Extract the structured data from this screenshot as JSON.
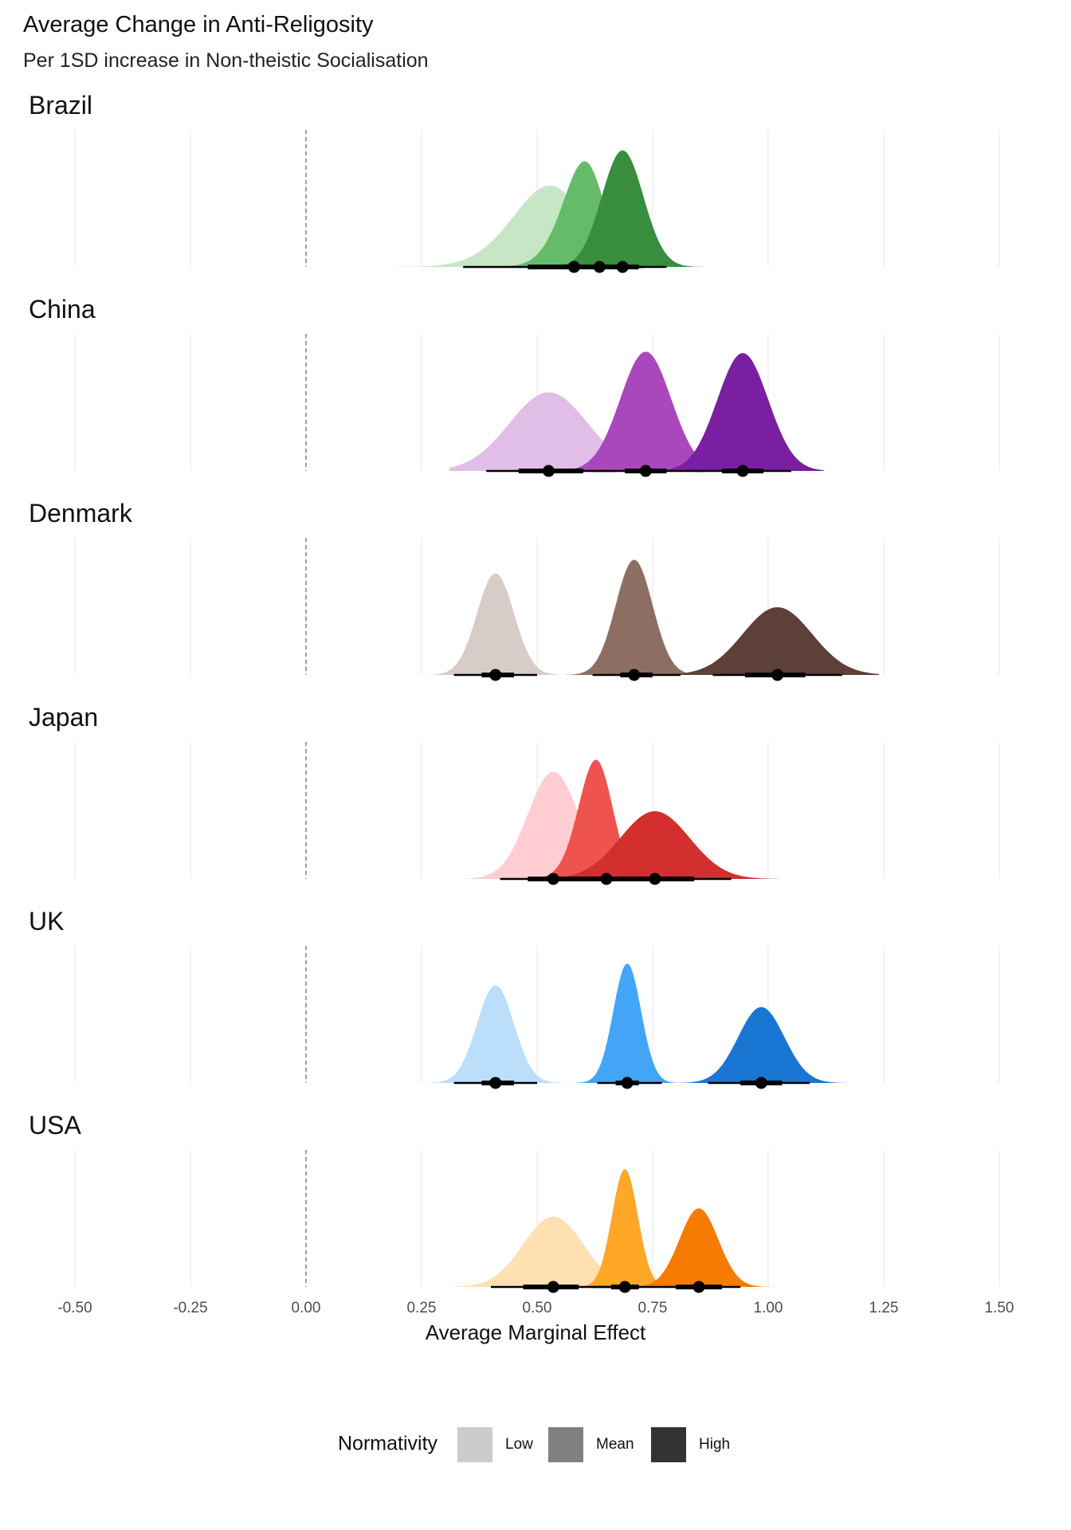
{
  "chart_data": {
    "type": "area",
    "subtype": "density-halfeye",
    "title": "Average Change in Anti-Religosity",
    "subtitle": "Per 1SD increase in Non-theistic Socialisation",
    "xlabel": "Average Marginal Effect",
    "ylabel": "",
    "xlim": [
      -0.5,
      1.5
    ],
    "x_ticks": [
      -0.5,
      -0.25,
      0.0,
      0.25,
      0.5,
      0.75,
      1.0,
      1.25,
      1.5
    ],
    "x_tick_labels": [
      "-0.50",
      "-0.25",
      "0.00",
      "0.25",
      "0.50",
      "0.75",
      "1.00",
      "1.25",
      "1.50"
    ],
    "reference_line": {
      "x": 0.0,
      "style": "dashed"
    },
    "grid": "vertical",
    "legend": {
      "title": "Normativity",
      "placement": "bottom",
      "entries": [
        {
          "label": "Low",
          "color": "#cccccc"
        },
        {
          "label": "Mean",
          "color": "#808080"
        },
        {
          "label": "High",
          "color": "#333333"
        }
      ]
    },
    "panels": [
      {
        "label": "Brazil",
        "series": [
          {
            "level": "Low",
            "color": "#c7e6c5",
            "mean": 0.58,
            "sd": 0.1,
            "skew": -1.2,
            "range": [
              0.12,
              0.9
            ],
            "peak": 0.6,
            "ci66": [
              0.48,
              0.67
            ],
            "ci95": [
              0.34,
              0.73
            ]
          },
          {
            "level": "Mean",
            "color": "#66bb6a",
            "mean": 0.635,
            "sd": 0.06,
            "skew": -1.4,
            "range": [
              0.35,
              0.85
            ],
            "peak": 0.78,
            "ci66": [
              0.59,
              0.68
            ],
            "ci95": [
              0.5,
              0.73
            ]
          },
          {
            "level": "High",
            "color": "#388e3c",
            "mean": 0.685,
            "sd": 0.045,
            "skew": 0.0,
            "range": [
              0.48,
              0.86
            ],
            "peak": 0.86,
            "ci66": [
              0.66,
              0.72
            ],
            "ci95": [
              0.6,
              0.78
            ]
          }
        ]
      },
      {
        "label": "China",
        "series": [
          {
            "level": "Low",
            "color": "#e1bee7",
            "mean": 0.525,
            "sd": 0.085,
            "skew": 0.0,
            "range": [
              0.31,
              0.8
            ],
            "peak": 0.58,
            "ci66": [
              0.46,
              0.6
            ],
            "ci95": [
              0.39,
              0.67
            ]
          },
          {
            "level": "Mean",
            "color": "#ab47bc",
            "mean": 0.735,
            "sd": 0.055,
            "skew": 0.0,
            "range": [
              0.58,
              0.96
            ],
            "peak": 0.88,
            "ci66": [
              0.69,
              0.78
            ],
            "ci95": [
              0.62,
              0.86
            ]
          },
          {
            "level": "High",
            "color": "#7b1fa2",
            "mean": 0.945,
            "sd": 0.055,
            "skew": 0.0,
            "range": [
              0.78,
              1.12
            ],
            "peak": 0.87,
            "ci66": [
              0.9,
              0.99
            ],
            "ci95": [
              0.84,
              1.05
            ]
          }
        ]
      },
      {
        "label": "Denmark",
        "series": [
          {
            "level": "Low",
            "color": "#d7ccc8",
            "mean": 0.41,
            "sd": 0.04,
            "skew": 0.0,
            "range": [
              0.26,
              0.55
            ],
            "peak": 0.75,
            "ci66": [
              0.38,
              0.45
            ],
            "ci95": [
              0.32,
              0.5
            ]
          },
          {
            "level": "Mean",
            "color": "#8d6e63",
            "mean": 0.71,
            "sd": 0.04,
            "skew": 0.0,
            "range": [
              0.56,
              0.84
            ],
            "peak": 0.85,
            "ci66": [
              0.68,
              0.75
            ],
            "ci95": [
              0.62,
              0.81
            ]
          },
          {
            "level": "High",
            "color": "#5d4037",
            "mean": 1.02,
            "sd": 0.075,
            "skew": 0.0,
            "range": [
              0.8,
              1.24
            ],
            "peak": 0.5,
            "ci66": [
              0.95,
              1.08
            ],
            "ci95": [
              0.88,
              1.16
            ]
          }
        ]
      },
      {
        "label": "Japan",
        "series": [
          {
            "level": "Low",
            "color": "#ffcdd2",
            "mean": 0.535,
            "sd": 0.055,
            "skew": 0.0,
            "range": [
              0.34,
              0.72
            ],
            "peak": 0.79,
            "ci66": [
              0.48,
              0.6
            ],
            "ci95": [
              0.42,
              0.67
            ]
          },
          {
            "level": "Mean",
            "color": "#ef5350",
            "mean": 0.65,
            "sd": 0.045,
            "skew": -1.0,
            "range": [
              0.5,
              0.84
            ],
            "peak": 0.88,
            "ci66": [
              0.59,
              0.7
            ],
            "ci95": [
              0.52,
              0.76
            ]
          },
          {
            "level": "High",
            "color": "#d32f2f",
            "mean": 0.755,
            "sd": 0.075,
            "skew": 0.0,
            "range": [
              0.48,
              1.02
            ],
            "peak": 0.5,
            "ci66": [
              0.67,
              0.84
            ],
            "ci95": [
              0.56,
              0.92
            ]
          }
        ]
      },
      {
        "label": "UK",
        "series": [
          {
            "level": "Low",
            "color": "#bbdefb",
            "mean": 0.41,
            "sd": 0.04,
            "skew": 0.0,
            "range": [
              0.26,
              0.56
            ],
            "peak": 0.72,
            "ci66": [
              0.38,
              0.45
            ],
            "ci95": [
              0.32,
              0.5
            ]
          },
          {
            "level": "Mean",
            "color": "#42a5f5",
            "mean": 0.695,
            "sd": 0.03,
            "skew": 0.0,
            "range": [
              0.58,
              0.8
            ],
            "peak": 0.88,
            "ci66": [
              0.67,
              0.72
            ],
            "ci95": [
              0.63,
              0.77
            ]
          },
          {
            "level": "High",
            "color": "#1976d2",
            "mean": 0.985,
            "sd": 0.05,
            "skew": 0.0,
            "range": [
              0.8,
              1.17
            ],
            "peak": 0.56,
            "ci66": [
              0.94,
              1.03
            ],
            "ci95": [
              0.87,
              1.09
            ]
          }
        ]
      },
      {
        "label": "USA",
        "series": [
          {
            "level": "Low",
            "color": "#ffe0b2",
            "mean": 0.535,
            "sd": 0.065,
            "skew": 0.0,
            "range": [
              0.31,
              0.8
            ],
            "peak": 0.52,
            "ci66": [
              0.47,
              0.59
            ],
            "ci95": [
              0.4,
              0.68
            ]
          },
          {
            "level": "Mean",
            "color": "#ffa726",
            "mean": 0.69,
            "sd": 0.028,
            "skew": 0.0,
            "range": [
              0.57,
              0.82
            ],
            "peak": 0.87,
            "ci66": [
              0.66,
              0.72
            ],
            "ci95": [
              0.62,
              0.76
            ]
          },
          {
            "level": "High",
            "color": "#f57c00",
            "mean": 0.85,
            "sd": 0.042,
            "skew": 0.0,
            "range": [
              0.7,
              1.02
            ],
            "peak": 0.58,
            "ci66": [
              0.8,
              0.9
            ],
            "ci95": [
              0.76,
              0.94
            ]
          }
        ]
      }
    ]
  }
}
